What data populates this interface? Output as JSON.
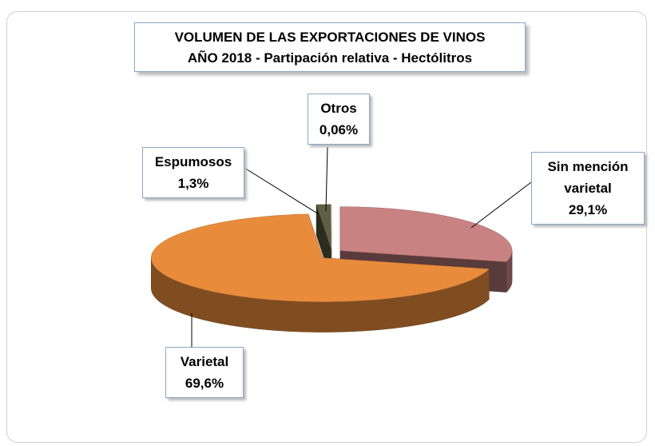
{
  "chart_data": {
    "type": "pie3d",
    "title": "VOLUMEN DE LAS EXPORTACIONES DE VINOS",
    "subtitle": "AÑO 2018 - Partipación relativa - Hectólitros",
    "categories": [
      "Sin mención varietal",
      "Varietal",
      "Espumosos",
      "Otros"
    ],
    "values": [
      29.1,
      69.6,
      1.3,
      0.06
    ],
    "value_labels": [
      "29,1%",
      "69,6%",
      "1,3%",
      "0,06%"
    ],
    "colors": [
      "#c98282",
      "#e88c3c",
      "#5f5f45",
      "#f2edc4"
    ]
  }
}
